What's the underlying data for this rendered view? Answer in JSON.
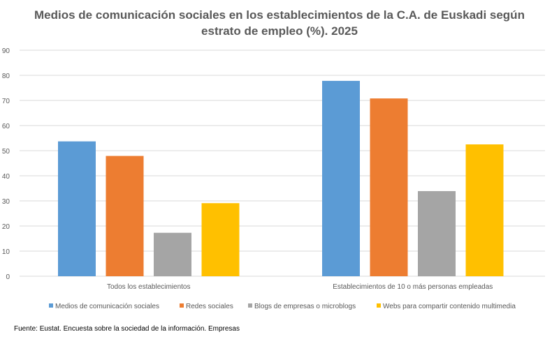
{
  "chart_data": {
    "type": "bar",
    "title_line1": "Medios de comunicación sociales en los establecimientos de la C.A. de Euskadi según",
    "title_line2": "estrato de empleo (%). 2025",
    "categories": [
      "Todos los establecimientos",
      "Establecimientos de 10 o más personas empleadas"
    ],
    "series": [
      {
        "name": "Medios de comunicación sociales",
        "color": "#5B9BD5",
        "values": [
          53.7,
          77.8
        ]
      },
      {
        "name": "Redes sociales",
        "color": "#ED7D31",
        "values": [
          47.9,
          70.8
        ]
      },
      {
        "name": "Blogs de empresas o microblogs",
        "color": "#A5A5A5",
        "values": [
          17.3,
          33.9
        ]
      },
      {
        "name": "Webs para compartir contenido multimedia",
        "color": "#FFC000",
        "values": [
          29.1,
          52.5
        ]
      }
    ],
    "ylim": [
      0,
      90
    ],
    "yticks": [
      "0",
      "10",
      "20",
      "30",
      "40",
      "50",
      "60",
      "70",
      "80",
      "90"
    ],
    "grid": true,
    "legend": "bottom"
  },
  "source": "Fuente: Eustat. Encuesta sobre la sociedad de la información. Empresas"
}
